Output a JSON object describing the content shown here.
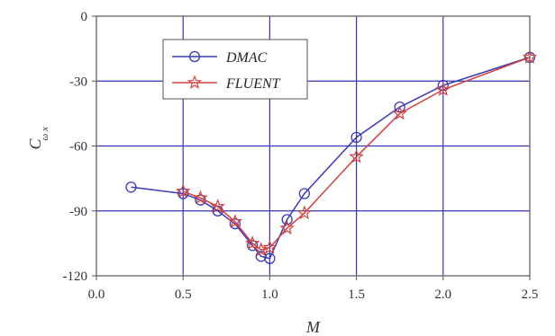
{
  "chart_data": {
    "type": "line",
    "title": "",
    "xlabel": "M",
    "ylabel": "C",
    "ylabel_sub": "ω x",
    "xlim": [
      0.0,
      2.5
    ],
    "ylim": [
      -120,
      0
    ],
    "xticks": [
      "0.0",
      "0.5",
      "1.0",
      "1.5",
      "2.0",
      "2.5"
    ],
    "yticks": [
      "0",
      "-30",
      "-60",
      "-90",
      "-120"
    ],
    "grid": true,
    "legend_position": "top-left",
    "series": [
      {
        "name": "DMAC",
        "color": "#3b3bb5",
        "marker": "circle",
        "x": [
          0.2,
          0.5,
          0.6,
          0.7,
          0.8,
          0.9,
          0.95,
          1.0,
          1.1,
          1.2,
          1.5,
          1.75,
          2.0,
          2.5
        ],
        "y": [
          -79,
          -82,
          -85,
          -90,
          -96,
          -106,
          -111,
          -112,
          -94,
          -82,
          -56,
          -42,
          -32,
          -19
        ]
      },
      {
        "name": "FLUENT",
        "color": "#d04040",
        "marker": "star",
        "x": [
          0.5,
          0.6,
          0.7,
          0.8,
          0.9,
          0.95,
          1.0,
          1.1,
          1.2,
          1.5,
          1.75,
          2.0,
          2.5
        ],
        "y": [
          -81,
          -84,
          -88,
          -95,
          -105,
          -108,
          -107,
          -98,
          -91,
          -65,
          -45,
          -34,
          -19
        ]
      }
    ]
  }
}
